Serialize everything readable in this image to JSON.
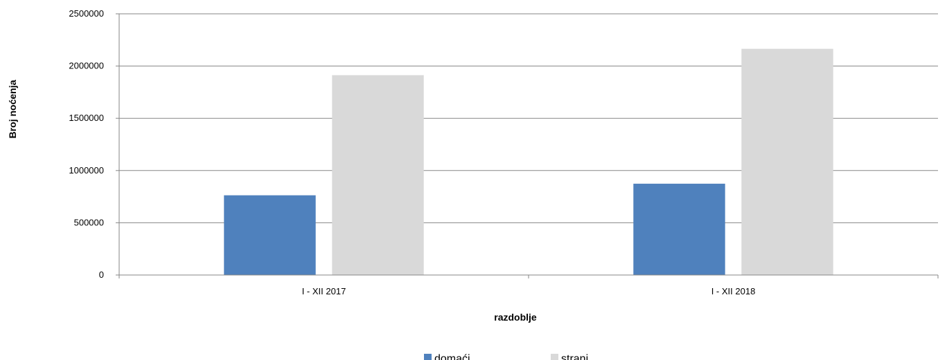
{
  "chart_data": {
    "type": "bar",
    "title": "",
    "xlabel": "razdoblje",
    "ylabel": "Broj noćenja",
    "categories": [
      "I - XII 2017",
      "I - XII 2018"
    ],
    "series": [
      {
        "name": "domaći",
        "values": [
          763000,
          874000
        ],
        "color": "#4f81bd"
      },
      {
        "name": "strani",
        "values": [
          1913000,
          2165000
        ],
        "color": "#d9d9d9"
      }
    ],
    "ylim": [
      0,
      2500000
    ],
    "yticks": [
      "0",
      "500000",
      "1000000",
      "1500000",
      "2000000",
      "2500000"
    ],
    "grid": true,
    "legend_position": "bottom"
  }
}
